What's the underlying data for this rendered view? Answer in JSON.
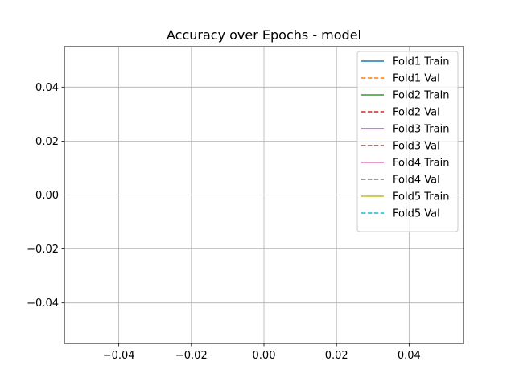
{
  "chart_data": {
    "type": "line",
    "title": "Accuracy over Epochs - model",
    "xlabel": "",
    "ylabel": "",
    "xlim": [
      -0.055,
      0.055
    ],
    "ylim": [
      -0.055,
      0.055
    ],
    "x_ticks": [
      {
        "value": -0.04,
        "label": "−0.04"
      },
      {
        "value": -0.02,
        "label": "−0.02"
      },
      {
        "value": 0.0,
        "label": "0.00"
      },
      {
        "value": 0.02,
        "label": "0.02"
      },
      {
        "value": 0.04,
        "label": "0.04"
      }
    ],
    "y_ticks": [
      {
        "value": 0.04,
        "label": "0.04"
      },
      {
        "value": 0.02,
        "label": "0.02"
      },
      {
        "value": 0.0,
        "label": "0.00"
      },
      {
        "value": -0.02,
        "label": "−0.02"
      },
      {
        "value": -0.04,
        "label": "−0.04"
      }
    ],
    "grid": true,
    "legend_position": "top-right",
    "series": [
      {
        "name": "Fold1 Train",
        "color": "#1f77b4",
        "dashed": false,
        "x": [],
        "y": []
      },
      {
        "name": "Fold1 Val",
        "color": "#ff7f0e",
        "dashed": true,
        "x": [],
        "y": []
      },
      {
        "name": "Fold2 Train",
        "color": "#2ca02c",
        "dashed": false,
        "x": [],
        "y": []
      },
      {
        "name": "Fold2 Val",
        "color": "#d62728",
        "dashed": true,
        "x": [],
        "y": []
      },
      {
        "name": "Fold3 Train",
        "color": "#9467bd",
        "dashed": false,
        "x": [],
        "y": []
      },
      {
        "name": "Fold3 Val",
        "color": "#8c564b",
        "dashed": true,
        "x": [],
        "y": []
      },
      {
        "name": "Fold4 Train",
        "color": "#e377c2",
        "dashed": false,
        "x": [],
        "y": []
      },
      {
        "name": "Fold4 Val",
        "color": "#7f7f7f",
        "dashed": true,
        "x": [],
        "y": []
      },
      {
        "name": "Fold5 Train",
        "color": "#bcbd22",
        "dashed": false,
        "x": [],
        "y": []
      },
      {
        "name": "Fold5 Val",
        "color": "#17becf",
        "dashed": true,
        "x": [],
        "y": []
      }
    ]
  }
}
